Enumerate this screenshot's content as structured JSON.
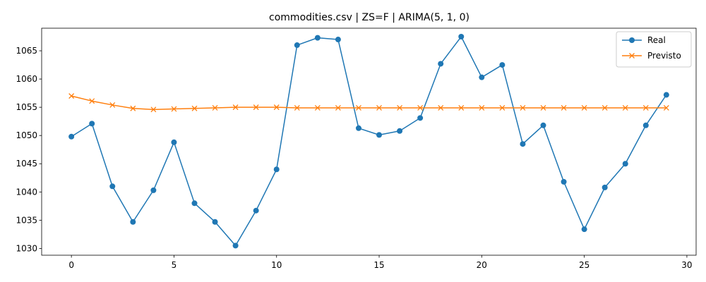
{
  "chart_data": {
    "type": "line",
    "title": "commodities.csv | ZS=F | ARIMA(5, 1, 0)",
    "xlabel": "",
    "ylabel": "",
    "xlim": [
      -1.45,
      30.45
    ],
    "ylim": [
      1028.8,
      1069.0
    ],
    "x_ticks": [
      0,
      5,
      10,
      15,
      20,
      25,
      30
    ],
    "y_ticks": [
      1030,
      1035,
      1040,
      1045,
      1050,
      1055,
      1060,
      1065
    ],
    "grid": false,
    "legend_position": "top-right",
    "x": [
      0,
      1,
      2,
      3,
      4,
      5,
      6,
      7,
      8,
      9,
      10,
      11,
      12,
      13,
      14,
      15,
      16,
      17,
      18,
      19,
      20,
      21,
      22,
      23,
      24,
      25,
      26,
      27,
      28,
      29
    ],
    "series": [
      {
        "name": "Real",
        "color": "#1f77b4",
        "marker": "circle",
        "values": [
          1049.8,
          1052.1,
          1041.0,
          1034.7,
          1040.3,
          1048.8,
          1038.0,
          1034.7,
          1030.5,
          1036.7,
          1044.0,
          1066.0,
          1067.3,
          1067.0,
          1051.3,
          1050.1,
          1050.8,
          1053.1,
          1062.7,
          1067.5,
          1060.3,
          1062.5,
          1048.5,
          1051.8,
          1041.8,
          1033.4,
          1040.8,
          1045.0,
          1051.8,
          1057.2
        ]
      },
      {
        "name": "Previsto",
        "color": "#ff7f0e",
        "marker": "x",
        "values": [
          1057.0,
          1056.1,
          1055.4,
          1054.8,
          1054.6,
          1054.7,
          1054.8,
          1054.9,
          1055.0,
          1055.0,
          1055.0,
          1054.9,
          1054.9,
          1054.9,
          1054.9,
          1054.9,
          1054.9,
          1054.9,
          1054.9,
          1054.9,
          1054.9,
          1054.9,
          1054.9,
          1054.9,
          1054.9,
          1054.9,
          1054.9,
          1054.9,
          1054.9,
          1054.9
        ]
      }
    ]
  }
}
